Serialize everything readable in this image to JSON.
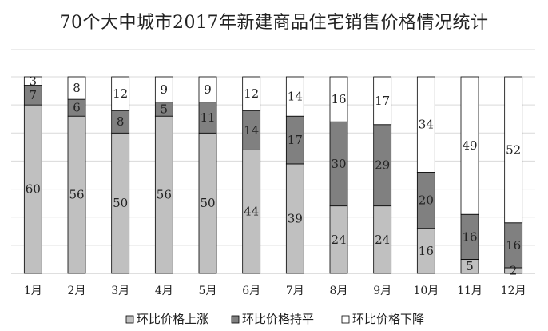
{
  "chart_data": {
    "type": "bar",
    "stacked": true,
    "title": "70个大中城市2017年新建商品住宅销售价格情况统计",
    "categories": [
      "1月",
      "2月",
      "3月",
      "4月",
      "5月",
      "6月",
      "7月",
      "8月",
      "9月",
      "10月",
      "11月",
      "12月"
    ],
    "series": [
      {
        "name": "环比价格上涨",
        "color": "#c0c0c0",
        "values": [
          60,
          56,
          50,
          56,
          50,
          44,
          39,
          24,
          24,
          16,
          5,
          2
        ]
      },
      {
        "name": "环比价格持平",
        "color": "#808080",
        "values": [
          7,
          6,
          8,
          5,
          11,
          14,
          17,
          30,
          29,
          20,
          16,
          16
        ]
      },
      {
        "name": "环比价格下降",
        "color": "#ffffff",
        "values": [
          3,
          8,
          12,
          9,
          9,
          12,
          14,
          16,
          17,
          34,
          49,
          52
        ]
      }
    ],
    "ylim": [
      0,
      70
    ],
    "grid": true,
    "legend_position": "bottom"
  }
}
